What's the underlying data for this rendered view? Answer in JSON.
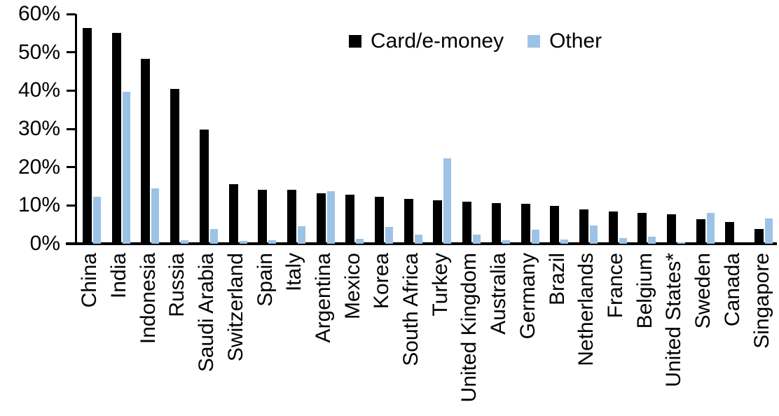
{
  "chart_data": {
    "type": "bar",
    "title": "",
    "xlabel": "",
    "ylabel": "",
    "ylim": [
      0,
      60
    ],
    "y_ticks": [
      "0%",
      "10%",
      "20%",
      "30%",
      "40%",
      "50%",
      "60%"
    ],
    "grid": false,
    "legend_position": "top-center",
    "categories": [
      "China",
      "India",
      "Indonesia",
      "Russia",
      "Saudi Arabia",
      "Switzerland",
      "Spain",
      "Italy",
      "Argentina",
      "Mexico",
      "Korea",
      "South Africa",
      "Turkey",
      "United Kingdom",
      "Australia",
      "Germany",
      "Brazil",
      "Netherlands",
      "France",
      "Belgium",
      "United States*",
      "Sweden",
      "Canada",
      "Singapore"
    ],
    "series": [
      {
        "name": "Card/e-money",
        "color": "#000000",
        "values": [
          56.3,
          55.0,
          48.3,
          40.4,
          29.8,
          15.5,
          14.1,
          14.0,
          13.2,
          12.8,
          12.2,
          11.7,
          11.4,
          10.9,
          10.6,
          10.5,
          9.9,
          9.0,
          8.4,
          8.0,
          7.7,
          6.4,
          5.7,
          3.8
        ]
      },
      {
        "name": "Other",
        "color": "#9CC3E6",
        "values": [
          12.2,
          39.7,
          14.4,
          0.9,
          3.8,
          0.8,
          1.0,
          4.6,
          13.7,
          1.3,
          4.4,
          2.3,
          22.4,
          2.3,
          1.0,
          3.7,
          1.1,
          4.8,
          1.5,
          1.9,
          0.3,
          8.0,
          0.0,
          6.6
        ]
      }
    ]
  },
  "colors": {
    "background": "#FFFFFF",
    "axis": "#000000",
    "bar_card": "#000000",
    "bar_other": "#9CC3E6"
  }
}
